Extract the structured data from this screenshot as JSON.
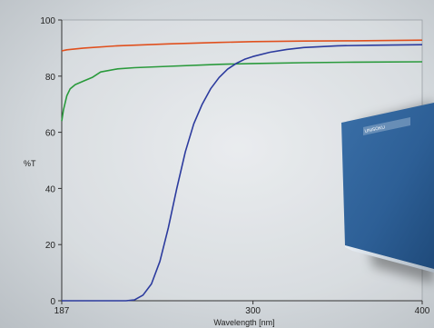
{
  "chart_data": {
    "type": "line",
    "title": "",
    "xlabel": "Wavelength [nm]",
    "ylabel": "%T",
    "xlim": [
      187,
      400
    ],
    "ylim": [
      0,
      100
    ],
    "x_ticks": [
      187,
      300,
      400
    ],
    "y_ticks": [
      0,
      20,
      40,
      60,
      80,
      100
    ],
    "grid": false,
    "legend": "none",
    "series": [
      {
        "color": "#e0501e",
        "x": [
          187,
          190,
          200,
          220,
          250,
          280,
          300,
          330,
          360,
          400
        ],
        "y": [
          89.0,
          89.4,
          90.0,
          90.8,
          91.5,
          92.0,
          92.3,
          92.5,
          92.6,
          92.8
        ]
      },
      {
        "color": "#2a9a3c",
        "x": [
          187,
          188,
          190,
          192,
          195,
          200,
          205,
          210,
          220,
          230,
          250,
          280,
          300,
          330,
          360,
          400
        ],
        "y": [
          64,
          68,
          73,
          75.5,
          77,
          78.3,
          79.5,
          81.5,
          82.6,
          83.0,
          83.5,
          84.2,
          84.5,
          84.8,
          85.0,
          85.1
        ]
      },
      {
        "color": "#2c3b9e",
        "x": [
          187,
          200,
          215,
          225,
          230,
          235,
          240,
          245,
          250,
          255,
          260,
          265,
          270,
          275,
          280,
          285,
          290,
          295,
          300,
          310,
          320,
          330,
          350,
          370,
          400
        ],
        "y": [
          0,
          0,
          0,
          0,
          0.3,
          2.0,
          6.0,
          14.0,
          26.0,
          40.0,
          53.0,
          63.0,
          70.0,
          75.5,
          79.5,
          82.5,
          84.5,
          86.0,
          87.0,
          88.5,
          89.5,
          90.2,
          90.8,
          91.0,
          91.2
        ]
      }
    ]
  },
  "product": {
    "label_text": "UNISOKU"
  }
}
